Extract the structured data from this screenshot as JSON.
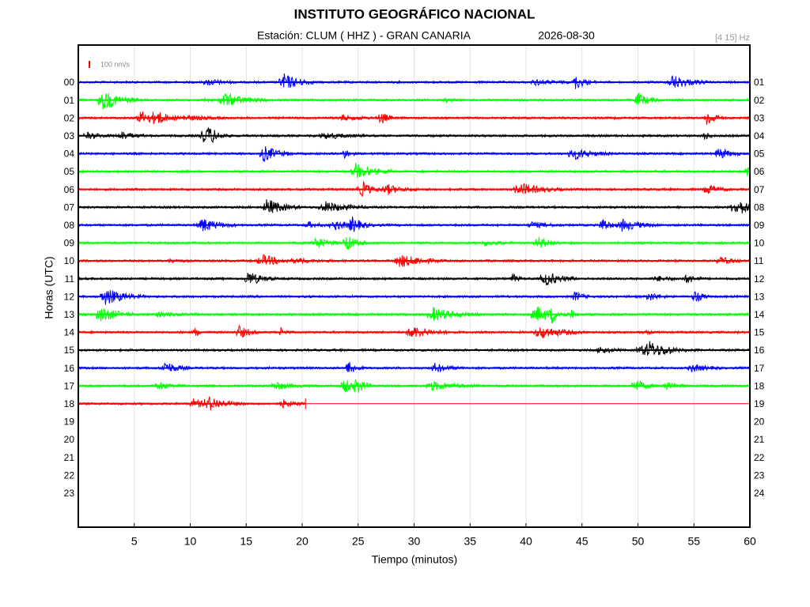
{
  "chart_data": {
    "type": "helicorder",
    "title": "INSTITUTO GEOGRÁFICO NACIONAL",
    "station": "Estación:  CLUM ( HHZ ) - GRAN CANARIA",
    "date": "2026-08-30",
    "band": "[4 15] Hz",
    "scale_label": "100 nm/s",
    "xlabel": "Tiempo (minutos)",
    "ylabel": "Horas (UTC)",
    "xlim": [
      0,
      60
    ],
    "xticks": [
      5,
      10,
      15,
      20,
      25,
      30,
      35,
      40,
      45,
      50,
      55,
      60
    ],
    "grid": true,
    "left_labels": [
      "00",
      "01",
      "02",
      "03",
      "04",
      "05",
      "06",
      "07",
      "08",
      "09",
      "10",
      "11",
      "12",
      "13",
      "14",
      "15",
      "16",
      "17",
      "18",
      "19",
      "20",
      "21",
      "22",
      "23"
    ],
    "right_labels": [
      "01",
      "02",
      "03",
      "04",
      "05",
      "06",
      "07",
      "08",
      "09",
      "10",
      "11",
      "12",
      "13",
      "14",
      "15",
      "16",
      "17",
      "18",
      "19",
      "20",
      "21",
      "22",
      "23",
      "24"
    ],
    "traces": [
      {
        "color": "#0000ff",
        "end": 60
      },
      {
        "color": "#00ff00",
        "end": 60
      },
      {
        "color": "#ff0000",
        "end": 60
      },
      {
        "color": "#000000",
        "end": 60
      },
      {
        "color": "#0000ff",
        "end": 60
      },
      {
        "color": "#00ff00",
        "end": 60
      },
      {
        "color": "#ff0000",
        "end": 60
      },
      {
        "color": "#000000",
        "end": 60
      },
      {
        "color": "#0000ff",
        "end": 60
      },
      {
        "color": "#00ff00",
        "end": 60
      },
      {
        "color": "#ff0000",
        "end": 60
      },
      {
        "color": "#000000",
        "end": 60
      },
      {
        "color": "#0000ff",
        "end": 60
      },
      {
        "color": "#00ff00",
        "end": 60
      },
      {
        "color": "#ff0000",
        "end": 60
      },
      {
        "color": "#000000",
        "end": 60
      },
      {
        "color": "#0000ff",
        "end": 60
      },
      {
        "color": "#00ff00",
        "end": 60
      },
      {
        "color": "#ff0000",
        "end": 20.3
      }
    ]
  }
}
